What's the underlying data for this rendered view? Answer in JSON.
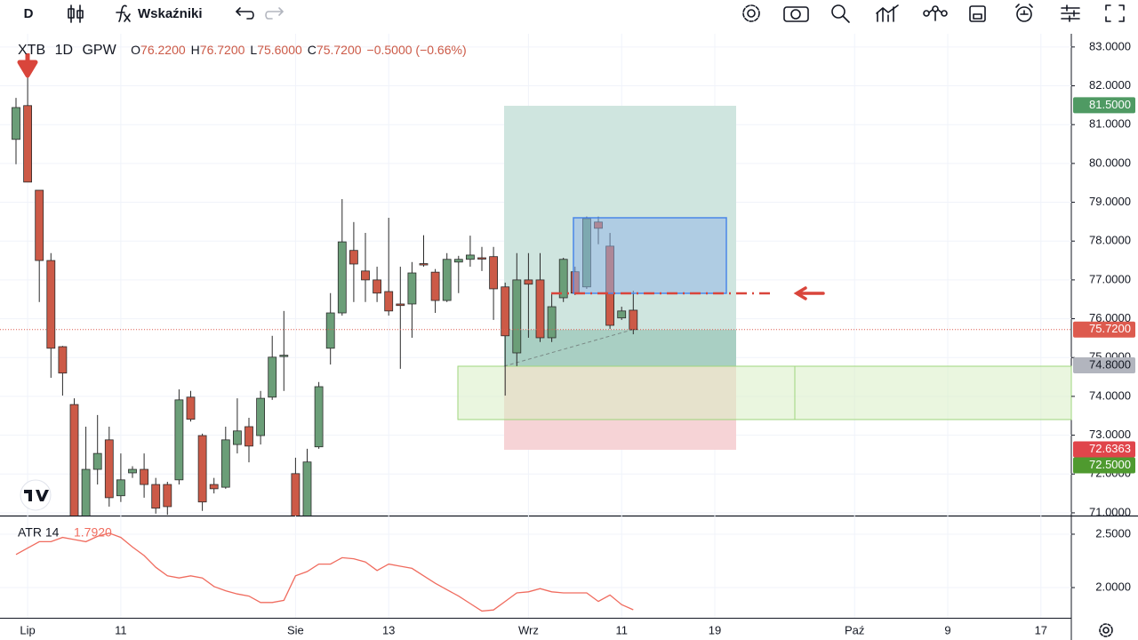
{
  "toolbar": {
    "interval": "D",
    "indicators": "Wskaźniki"
  },
  "chart_data": {
    "type": "candlestick",
    "symbol": "XTB",
    "interval": "1D",
    "exchange": "GPW",
    "ohlc_legend": [
      {
        "key": "O",
        "value": "76.2200"
      },
      {
        "key": "H",
        "value": "76.7200"
      },
      {
        "key": "L",
        "value": "75.6000"
      },
      {
        "key": "C",
        "value": "75.7200"
      }
    ],
    "change": "−0.5000 (−0.66%)",
    "categories": [
      null,
      "Lip",
      null,
      null,
      null,
      null,
      null,
      null,
      null,
      "11",
      null,
      null,
      null,
      null,
      null,
      null,
      null,
      null,
      null,
      null,
      null,
      null,
      null,
      null,
      "Sie",
      null,
      null,
      null,
      null,
      null,
      null,
      null,
      "13",
      null,
      null,
      null,
      null,
      null,
      null,
      null,
      null,
      null,
      null,
      null,
      "Wrz",
      null,
      null,
      null,
      null,
      null,
      null,
      null,
      "11",
      null,
      null,
      null,
      null,
      null,
      null,
      null,
      "19",
      null,
      null,
      null,
      null,
      null,
      null,
      null,
      null,
      null,
      null,
      null,
      "Paź",
      null,
      null,
      null,
      null,
      null,
      null,
      null,
      "9",
      null,
      null,
      null,
      null,
      null,
      null,
      null,
      "17",
      null,
      null
    ],
    "open": [
      80.62,
      81.49,
      79.31,
      77.5,
      75.28,
      73.79,
      70.9,
      72.12,
      72.88,
      71.44,
      72.03,
      72.12,
      71.73,
      71.73,
      71.85,
      73.98,
      72.99,
      71.73,
      71.66,
      72.76,
      73.22,
      72.99,
      73.98,
      75.05,
      72.01,
      70.85,
      72.7,
      75.24,
      76.15,
      77.76,
      77.23,
      77.0,
      76.7,
      76.38,
      76.38,
      77.42,
      77.2,
      76.47,
      77.46,
      77.53,
      77.57,
      77.6,
      76.82,
      75.12,
      77.0,
      77.0,
      75.51,
      76.54,
      77.21,
      76.82,
      78.49,
      77.87,
      76.02,
      76.22,
      null,
      null,
      null,
      null,
      null,
      null,
      null,
      null,
      null,
      null,
      null,
      null,
      null,
      null,
      null,
      null,
      null,
      null,
      null,
      null,
      null,
      null,
      null,
      null,
      null,
      null,
      null,
      null,
      null,
      null,
      null,
      null,
      null,
      null,
      null,
      null,
      null
    ],
    "high": [
      81.69,
      82.27,
      79.31,
      77.69,
      75.3,
      73.95,
      73.22,
      73.52,
      73.22,
      72.53,
      72.2,
      72.53,
      71.9,
      71.8,
      74.18,
      74.14,
      73.04,
      71.9,
      73.22,
      73.95,
      73.45,
      74.14,
      75.56,
      76.2,
      72.42,
      72.65,
      74.37,
      76.66,
      79.08,
      78.49,
      78.21,
      77.34,
      78.6,
      77.34,
      77.46,
      78.15,
      77.28,
      77.69,
      77.62,
      78.14,
      77.85,
      77.85,
      76.93,
      77.69,
      77.69,
      77.69,
      76.66,
      77.57,
      77.34,
      78.63,
      78.63,
      78.21,
      76.31,
      76.72,
      null,
      null,
      null,
      null,
      null,
      null,
      null,
      null,
      null,
      null,
      null,
      null,
      null,
      null,
      null,
      null,
      null,
      null,
      null,
      null,
      null,
      null,
      null,
      null,
      null,
      null,
      null,
      null,
      null,
      null,
      null,
      null,
      null,
      null,
      null,
      null,
      null
    ],
    "low": [
      79.98,
      79.52,
      76.43,
      74.48,
      74.02,
      70.5,
      70.6,
      71.73,
      71.16,
      71.28,
      71.9,
      71.39,
      70.98,
      70.95,
      71.73,
      73.35,
      71.05,
      71.5,
      71.62,
      72.53,
      72.3,
      72.76,
      73.91,
      74.14,
      70.6,
      70.6,
      72.65,
      74.82,
      76.08,
      76.43,
      76.43,
      76.43,
      76.08,
      74.71,
      75.51,
      77.34,
      76.15,
      76.43,
      76.66,
      77.34,
      77.23,
      75.97,
      74.02,
      74.78,
      75.51,
      75.4,
      75.4,
      76.43,
      76.61,
      76.77,
      77.92,
      75.74,
      75.97,
      75.6,
      null,
      null,
      null,
      null,
      null,
      null,
      null,
      null,
      null,
      null,
      null,
      null,
      null,
      null,
      null,
      null,
      null,
      null,
      null,
      null,
      null,
      null,
      null,
      null,
      null,
      null,
      null,
      null,
      null,
      null,
      null,
      null,
      null,
      null,
      null,
      null,
      null
    ],
    "close": [
      81.44,
      79.52,
      77.5,
      75.24,
      74.6,
      70.9,
      72.12,
      72.53,
      71.39,
      71.85,
      72.12,
      71.73,
      71.12,
      71.16,
      73.91,
      73.41,
      71.28,
      71.62,
      72.88,
      73.11,
      72.72,
      73.95,
      75.01,
      75.06,
      70.85,
      72.31,
      74.25,
      76.15,
      77.98,
      77.41,
      77.0,
      76.66,
      76.2,
      76.34,
      77.18,
      77.4,
      76.47,
      77.53,
      77.53,
      77.64,
      77.55,
      76.77,
      75.56,
      77.0,
      76.89,
      75.51,
      76.31,
      77.53,
      76.66,
      78.58,
      78.33,
      75.83,
      76.2,
      75.72,
      null,
      null,
      null,
      null,
      null,
      null,
      null,
      null,
      null,
      null,
      null,
      null,
      null,
      null,
      null,
      null,
      null,
      null,
      null,
      null,
      null,
      null,
      null,
      null,
      null,
      null,
      null,
      null,
      null,
      null,
      null,
      null,
      null,
      null,
      null,
      null,
      null
    ],
    "up_color": "#6b9e78",
    "down_color": "#cc5a47",
    "ylim": [
      70.93,
      83.34
    ],
    "yticks": [
      {
        "value": 71,
        "label": "71.0000"
      },
      {
        "value": 72,
        "label": "72.0000"
      },
      {
        "value": 73,
        "label": "73.0000"
      },
      {
        "value": 74,
        "label": "74.0000"
      },
      {
        "value": 75,
        "label": "75.0000"
      },
      {
        "value": 76,
        "label": "76.0000"
      },
      {
        "value": 77,
        "label": "77.0000"
      },
      {
        "value": 78,
        "label": "78.0000"
      },
      {
        "value": 79,
        "label": "79.0000"
      },
      {
        "value": 80,
        "label": "80.0000"
      },
      {
        "value": 81,
        "label": "81.0000"
      },
      {
        "value": 82,
        "label": "82.0000"
      },
      {
        "value": 83,
        "label": "83.0000"
      }
    ],
    "price_labels": [
      {
        "value": 81.5,
        "label": "81.5000",
        "color": "#4f9a63",
        "text_color": "#ffffff"
      },
      {
        "value": 75.72,
        "label": "75.7200",
        "color": "#dd5a4e",
        "text_color": "#ffffff"
      },
      {
        "value": 74.8,
        "label": "74.8000",
        "color": "#b2b5be",
        "text_color": "#131722"
      },
      {
        "value": 72.6363,
        "label": "72.6363",
        "color": "#e0454b",
        "text_color": "#ffffff"
      },
      {
        "value": 72.5,
        "label": "72.5000",
        "color": "#4f9a2f",
        "text_color": "#ffffff"
      }
    ],
    "grid": true
  },
  "indicator": {
    "type": "line",
    "name": "ATR 14",
    "last_value": "1.7920",
    "color": "#f06c5f",
    "values": [
      2.31,
      2.37,
      2.43,
      2.43,
      2.47,
      2.45,
      2.43,
      2.48,
      2.51,
      2.47,
      2.38,
      2.3,
      2.19,
      2.11,
      2.09,
      2.11,
      2.09,
      2.01,
      1.97,
      1.94,
      1.92,
      1.86,
      1.86,
      1.88,
      2.11,
      2.15,
      2.22,
      2.22,
      2.28,
      2.27,
      2.24,
      2.16,
      2.22,
      2.2,
      2.18,
      2.11,
      2.04,
      1.98,
      1.92,
      1.85,
      1.78,
      1.79,
      1.87,
      1.95,
      1.96,
      1.99,
      1.96,
      1.95,
      1.95,
      1.95,
      1.87,
      1.93,
      1.84,
      1.792,
      null,
      null,
      null,
      null,
      null,
      null,
      null,
      null,
      null,
      null,
      null,
      null,
      null,
      null,
      null,
      null,
      null,
      null,
      null,
      null,
      null,
      null,
      null,
      null,
      null,
      null,
      null,
      null,
      null,
      null,
      null,
      null,
      null,
      null,
      null,
      null,
      null
    ],
    "ylim": [
      1.717,
      2.658
    ],
    "yticks": [
      {
        "value": 2,
        "label": "2.0000"
      },
      {
        "value": 2.5,
        "label": "2.5000"
      }
    ]
  }
}
